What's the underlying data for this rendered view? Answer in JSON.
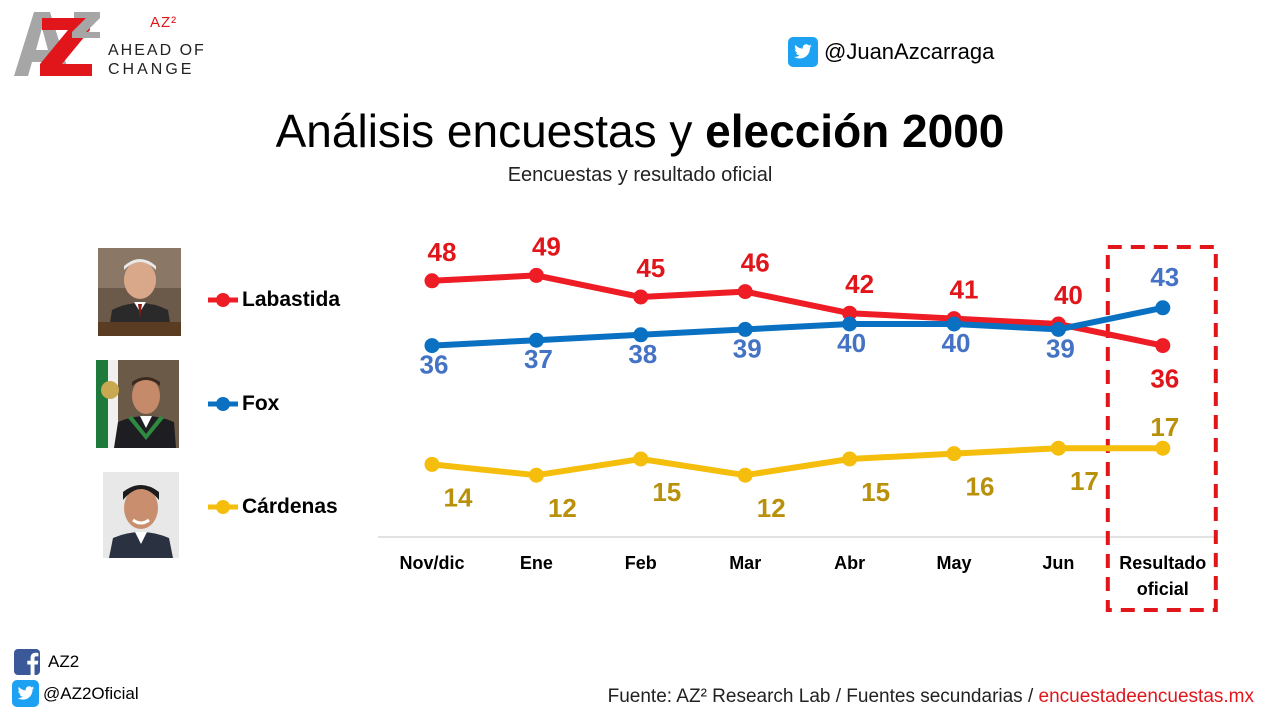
{
  "brand": {
    "logo_text": "AZ",
    "superscript": "AZ²",
    "tagline_line1": "AHEAD OF",
    "tagline_line2": "CHANGE"
  },
  "header": {
    "twitter_handle": "@JuanAzcarraga",
    "title_regular": "Análisis encuestas y ",
    "title_bold": "elección 2000",
    "subtitle": "Eencuestas y resultado oficial"
  },
  "legend": [
    {
      "name": "Labastida",
      "color": "#ee1c25"
    },
    {
      "name": "Fox",
      "color": "#0a70c2"
    },
    {
      "name": "Cárdenas",
      "color": "#f5be0c"
    }
  ],
  "chart_data": {
    "type": "line",
    "categories": [
      "Nov/dic",
      "Ene",
      "Feb",
      "Mar",
      "Abr",
      "May",
      "Jun",
      "Resultado oficial"
    ],
    "category_lines": [
      [
        "Nov/dic"
      ],
      [
        "Ene"
      ],
      [
        "Feb"
      ],
      [
        "Mar"
      ],
      [
        "Abr"
      ],
      [
        "May"
      ],
      [
        "Jun"
      ],
      [
        "Resultado",
        "oficial"
      ]
    ],
    "series": [
      {
        "name": "Labastida",
        "values": [
          48,
          49,
          45,
          46,
          42,
          41,
          40,
          36
        ],
        "color": "#ee1c25",
        "label_color": "#e0161b"
      },
      {
        "name": "Fox",
        "values": [
          36,
          37,
          38,
          39,
          40,
          40,
          39,
          43
        ],
        "color": "#0a70c2",
        "label_color": "#4472c4"
      },
      {
        "name": "Cárdenas",
        "values": [
          14,
          12,
          15,
          12,
          15,
          16,
          17,
          17
        ],
        "color": "#f5be0c",
        "label_color": "#b8900a"
      }
    ],
    "highlight_category": "Resultado oficial",
    "highlight_color": "#e0161b",
    "grid": false
  },
  "footer": {
    "facebook": "AZ2",
    "twitter": "@AZ2Oficial",
    "source_text": "Fuente: AZ² Research Lab / Fuentes secundarias / ",
    "source_link": "encuestadeencuestas.mx"
  }
}
